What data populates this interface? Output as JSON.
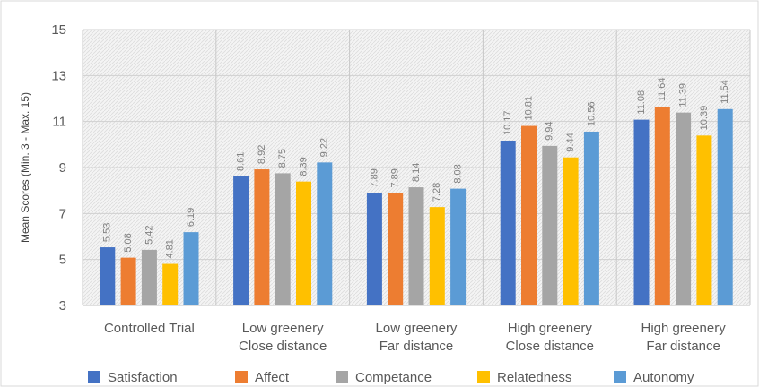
{
  "chart_data": {
    "type": "bar",
    "title": "",
    "xlabel": "",
    "ylabel": "Mean Scores (Min. 3 - Max. 15)",
    "ylim": [
      3,
      15
    ],
    "yticks": [
      3,
      5,
      7,
      9,
      11,
      13,
      15
    ],
    "grid": true,
    "legend_position": "bottom",
    "categories": [
      [
        "Controlled Trial"
      ],
      [
        "Low greenery",
        "Close distance"
      ],
      [
        "Low greenery",
        "Far distance"
      ],
      [
        "High greenery",
        "Close distance"
      ],
      [
        "High greenery",
        "Far distance"
      ]
    ],
    "series": [
      {
        "name": "Satisfaction",
        "color": "#4472C4",
        "values": [
          5.53,
          8.61,
          7.89,
          10.17,
          11.08
        ]
      },
      {
        "name": "Affect",
        "color": "#ED7D31",
        "values": [
          5.08,
          8.92,
          7.89,
          10.81,
          11.64
        ]
      },
      {
        "name": "Competance",
        "color": "#A5A5A5",
        "values": [
          5.42,
          8.75,
          8.14,
          9.94,
          11.39
        ]
      },
      {
        "name": "Relatedness",
        "color": "#FFC000",
        "values": [
          4.81,
          8.39,
          7.28,
          9.44,
          10.39
        ]
      },
      {
        "name": "Autonomy",
        "color": "#5B9BD5",
        "values": [
          6.19,
          9.22,
          8.08,
          10.56,
          11.54
        ]
      }
    ]
  }
}
